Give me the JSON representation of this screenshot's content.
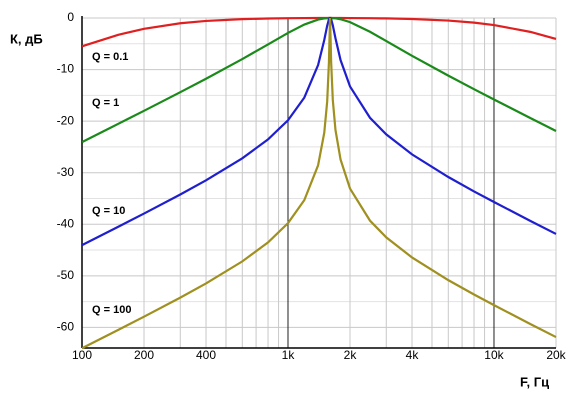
{
  "chart_data": {
    "type": "line",
    "log_x": true,
    "grid": true,
    "x_label": "F, Гц",
    "y_label": "К, дБ",
    "xlim": [
      100,
      20000
    ],
    "ylim": [
      -64,
      0
    ],
    "xticks": [
      100,
      200,
      400,
      {
        "value": 1000,
        "label": "1k"
      },
      {
        "value": 2000,
        "label": "2k"
      },
      {
        "value": 4000,
        "label": "4k"
      },
      {
        "value": 10000,
        "label": "10k"
      },
      {
        "value": 20000,
        "label": "20k"
      }
    ],
    "x_minor_ticks": [
      300,
      500,
      600,
      700,
      800,
      900,
      3000,
      5000,
      6000,
      7000,
      8000,
      9000
    ],
    "yticks": [
      0,
      -10,
      -20,
      -30,
      -40,
      -50,
      -60
    ],
    "y_minor_ticks": [
      -5,
      -15,
      -25,
      -35,
      -45,
      -55
    ],
    "x": [
      100,
      150,
      200,
      300,
      400,
      600,
      800,
      1000,
      1200,
      1400,
      1500,
      1550,
      1580,
      1590,
      1600,
      1610,
      1620,
      1650,
      1700,
      1800,
      2000,
      2500,
      3000,
      4000,
      6000,
      8000,
      10000,
      15000,
      20000
    ],
    "series": [
      {
        "name": "Q = 0.1",
        "color": "#e02020",
        "values": [
          -5.49,
          -3.26,
          -2.1,
          -1.02,
          -0.57,
          -0.22,
          -0.1,
          -0.04,
          -0.01,
          0,
          0,
          0,
          0,
          0,
          0,
          0,
          0,
          0,
          0,
          0,
          -0.01,
          -0.04,
          -0.08,
          -0.19,
          -0.5,
          -0.9,
          -1.37,
          -2.69,
          -4.05
        ]
      },
      {
        "name": "Q = 1",
        "color": "#1a8a1a",
        "values": [
          -24.07,
          -20.52,
          -18.0,
          -14.39,
          -11.78,
          -7.96,
          -5.12,
          -2.9,
          -1.27,
          -0.3,
          -0.07,
          -0.02,
          0,
          0,
          0,
          0,
          0,
          -0.02,
          -0.06,
          -0.24,
          -0.8,
          -2.67,
          -4.47,
          -7.33,
          -11.18,
          -13.81,
          -15.81,
          -19.39,
          -21.91
        ]
      },
      {
        "name": "Q = 10",
        "color": "#1f1fd0",
        "values": [
          -44.05,
          -40.48,
          -37.93,
          -34.23,
          -31.48,
          -27.21,
          -23.54,
          -19.83,
          -15.44,
          -9.12,
          -4.26,
          -1.47,
          -0.27,
          -0.07,
          0,
          -0.07,
          -0.26,
          -1.4,
          -3.93,
          -8.18,
          -13.27,
          -19.35,
          -22.58,
          -26.45,
          -30.84,
          -33.63,
          -35.69,
          -39.34,
          -41.88
        ]
      },
      {
        "name": "Q = 100",
        "color": "#a09020",
        "values": [
          -64.05,
          -60.48,
          -57.93,
          -54.23,
          -51.48,
          -47.2,
          -43.52,
          -39.78,
          -35.32,
          -28.56,
          -22.25,
          -16.16,
          -8.65,
          -4.1,
          0,
          -4.07,
          -8.56,
          -15.9,
          -21.71,
          -27.47,
          -33.07,
          -39.3,
          -42.55,
          -46.44,
          -50.84,
          -53.62,
          -55.69,
          -59.34,
          -61.88
        ]
      }
    ]
  }
}
